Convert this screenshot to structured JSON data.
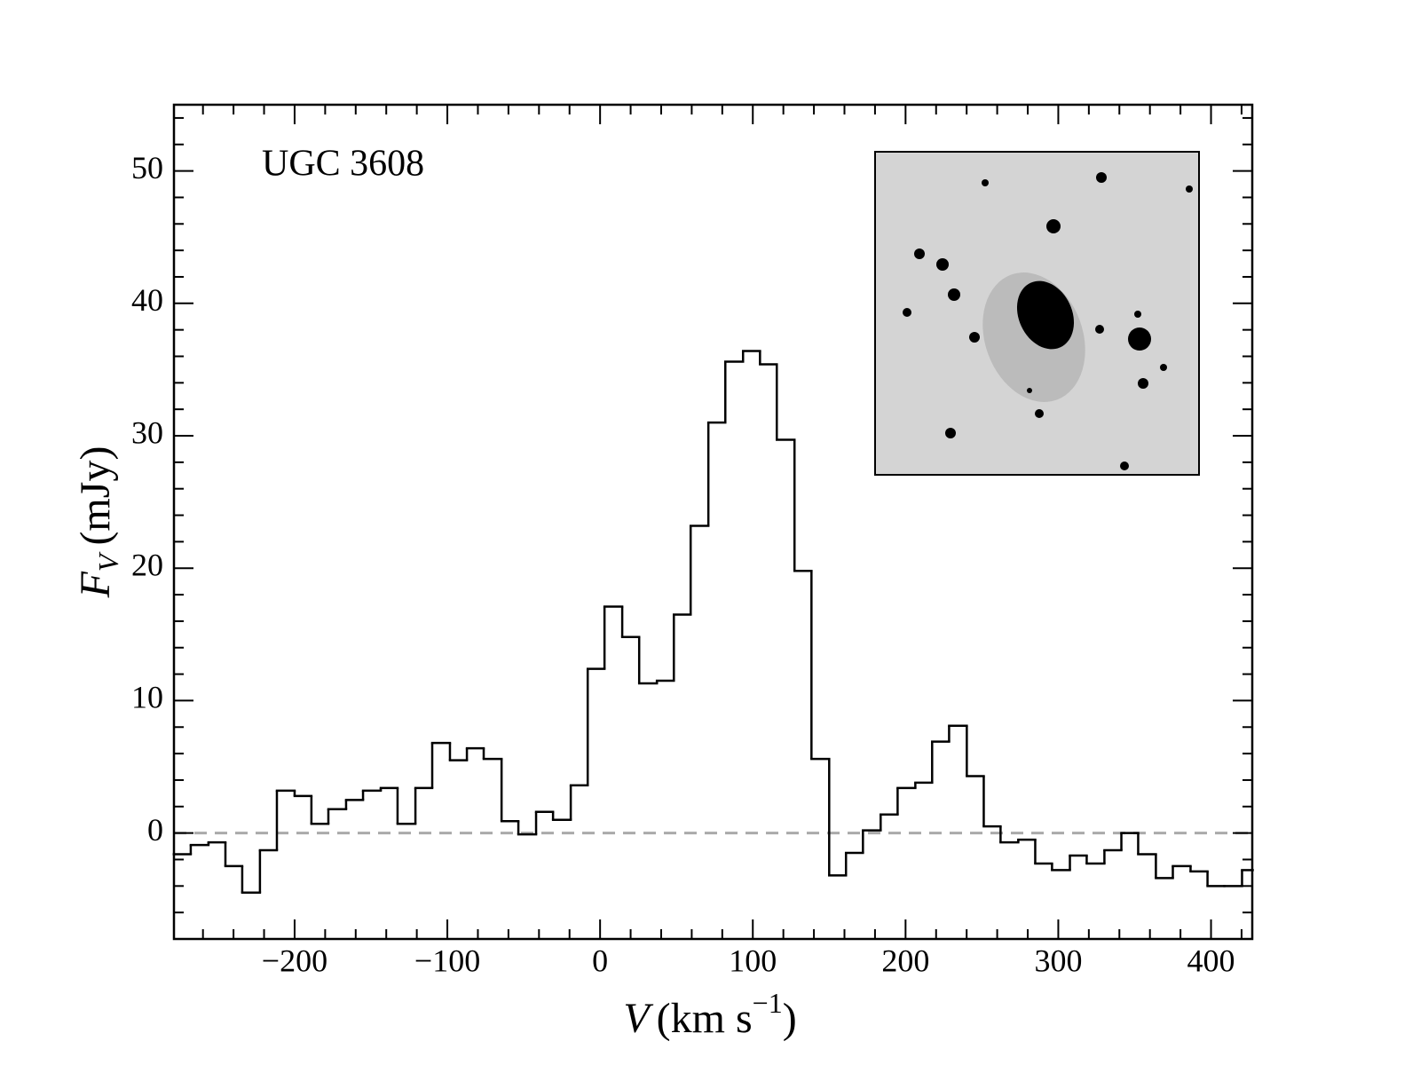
{
  "chart_data": {
    "type": "histogram",
    "annotation": "UGC 3608",
    "xlabel": {
      "symbol": "V",
      "unit": "(km s",
      "superscript": "−1",
      "close": ")"
    },
    "ylabel": {
      "symbol": "F",
      "subscript": "V",
      "unit": "(mJy)"
    },
    "bins": [
      -279.1,
      -268.0,
      -256.4,
      -245.3,
      -234.3,
      -222.7,
      -211.6,
      -200.0,
      -189.0,
      -177.9,
      -166.3,
      -155.2,
      -143.6,
      -132.6,
      -120.9,
      -109.9,
      -98.3,
      -87.2,
      -76.2,
      -64.5,
      -53.5,
      -41.9,
      -30.8,
      -19.2,
      -8.1,
      2.9,
      14.5,
      25.6,
      37.2,
      48.3,
      59.3,
      70.9,
      82.0,
      93.6,
      104.7,
      115.7,
      127.3,
      138.4,
      150.0,
      161.0,
      172.1,
      183.7,
      194.8,
      206.4,
      217.4,
      228.5,
      240.1,
      251.2,
      262.2,
      273.8,
      284.9,
      295.9,
      307.6,
      318.6,
      330.2,
      341.3,
      352.3,
      363.9,
      375.0,
      386.6,
      397.7,
      408.7,
      420.3,
      427.3
    ],
    "values": [
      -1.6,
      -0.9,
      -0.7,
      -2.5,
      -4.5,
      -1.3,
      3.2,
      2.8,
      0.7,
      1.8,
      2.5,
      3.2,
      3.4,
      0.7,
      3.4,
      6.8,
      5.5,
      6.4,
      5.6,
      0.9,
      -0.1,
      1.6,
      1.0,
      3.6,
      12.4,
      17.1,
      14.8,
      11.3,
      11.5,
      16.5,
      23.2,
      31.0,
      35.6,
      36.4,
      35.4,
      29.7,
      19.8,
      5.6,
      -3.2,
      -1.5,
      0.2,
      1.4,
      3.4,
      3.8,
      6.9,
      8.1,
      4.3,
      0.5,
      -0.7,
      -0.5,
      -2.3,
      -2.8,
      -1.7,
      -2.3,
      -1.3,
      0.0,
      -1.6,
      -3.4,
      -2.5,
      -2.9,
      -4.0,
      -4.0,
      -2.8
    ],
    "color": "#000000",
    "reference_line": 0,
    "xlim": [
      -279,
      427
    ],
    "ylim": [
      -8,
      55
    ],
    "xticks": [
      {
        "value": -200,
        "label": "−200"
      },
      {
        "value": -100,
        "label": "−100"
      },
      0,
      100,
      200,
      300,
      400
    ],
    "yticks": [
      0,
      10,
      20,
      30,
      40,
      50
    ],
    "xminorticks": [
      -260,
      -240,
      -220,
      -180,
      -160,
      -140,
      -120,
      -80,
      -60,
      -40,
      -20,
      20,
      40,
      60,
      80,
      120,
      140,
      160,
      180,
      220,
      240,
      260,
      280,
      320,
      340,
      360,
      380,
      420
    ],
    "yminorticks": [
      -6,
      -4,
      -2,
      2,
      4,
      6,
      8,
      12,
      14,
      16,
      18,
      22,
      24,
      26,
      28,
      32,
      34,
      36,
      38,
      42,
      44,
      46,
      48,
      52,
      54
    ]
  }
}
